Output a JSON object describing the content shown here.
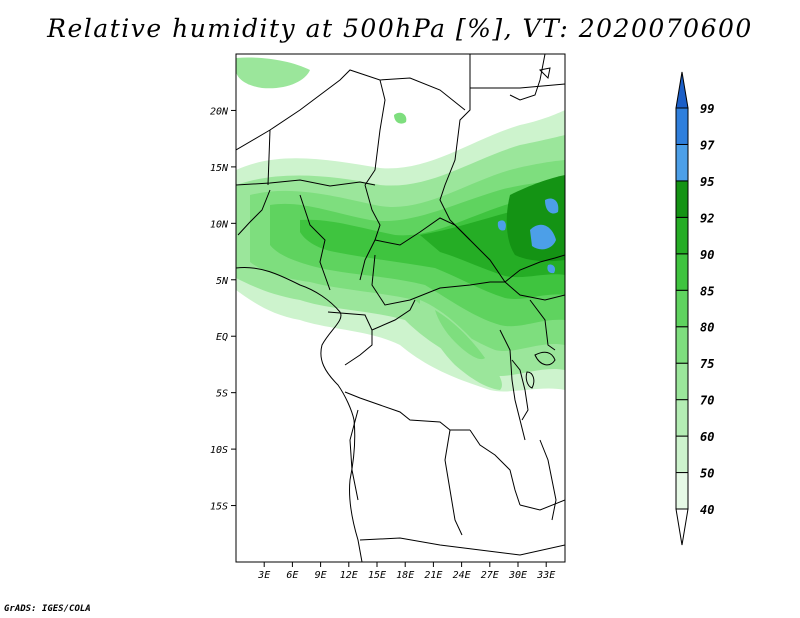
{
  "title": "Relative humidity at 500hPa [%], VT: 2020070600",
  "credit": "GrADS: IGES/COLA",
  "map": {
    "lon_range": [
      0,
      35
    ],
    "lat_range": [
      -20,
      25
    ],
    "lat_ticks": [
      {
        "value": 20,
        "label": "20N"
      },
      {
        "value": 15,
        "label": "15N"
      },
      {
        "value": 10,
        "label": "10N"
      },
      {
        "value": 5,
        "label": "5N"
      },
      {
        "value": 0,
        "label": "EQ"
      },
      {
        "value": -5,
        "label": "5S"
      },
      {
        "value": -10,
        "label": "10S"
      },
      {
        "value": -15,
        "label": "15S"
      }
    ],
    "lon_ticks": [
      {
        "value": 3,
        "label": "3E"
      },
      {
        "value": 6,
        "label": "6E"
      },
      {
        "value": 9,
        "label": "9E"
      },
      {
        "value": 12,
        "label": "12E"
      },
      {
        "value": 15,
        "label": "15E"
      },
      {
        "value": 18,
        "label": "18E"
      },
      {
        "value": 21,
        "label": "21E"
      },
      {
        "value": 24,
        "label": "24E"
      },
      {
        "value": 27,
        "label": "27E"
      },
      {
        "value": 30,
        "label": "30E"
      },
      {
        "value": 33,
        "label": "33E"
      }
    ]
  },
  "colorbar": {
    "levels": [
      {
        "label": "40",
        "color": "#e6f9e6"
      },
      {
        "label": "50",
        "color": "#cdf3cd"
      },
      {
        "label": "60",
        "color": "#b4edb4"
      },
      {
        "label": "70",
        "color": "#9be69b"
      },
      {
        "label": "75",
        "color": "#7ede7e"
      },
      {
        "label": "80",
        "color": "#5fd35f"
      },
      {
        "label": "85",
        "color": "#3fc43f"
      },
      {
        "label": "90",
        "color": "#25ad25"
      },
      {
        "label": "92",
        "color": "#149314"
      },
      {
        "label": "95",
        "color": "#4c9fe8"
      },
      {
        "label": "97",
        "color": "#2f7fdc"
      },
      {
        "label": "99",
        "color": "#1c5fc7"
      }
    ],
    "top_arrow_color": "#1c5fc7",
    "bottom_arrow_color": "#ffffff"
  },
  "colors": {
    "land_border": "#000000",
    "frame": "#000000"
  }
}
